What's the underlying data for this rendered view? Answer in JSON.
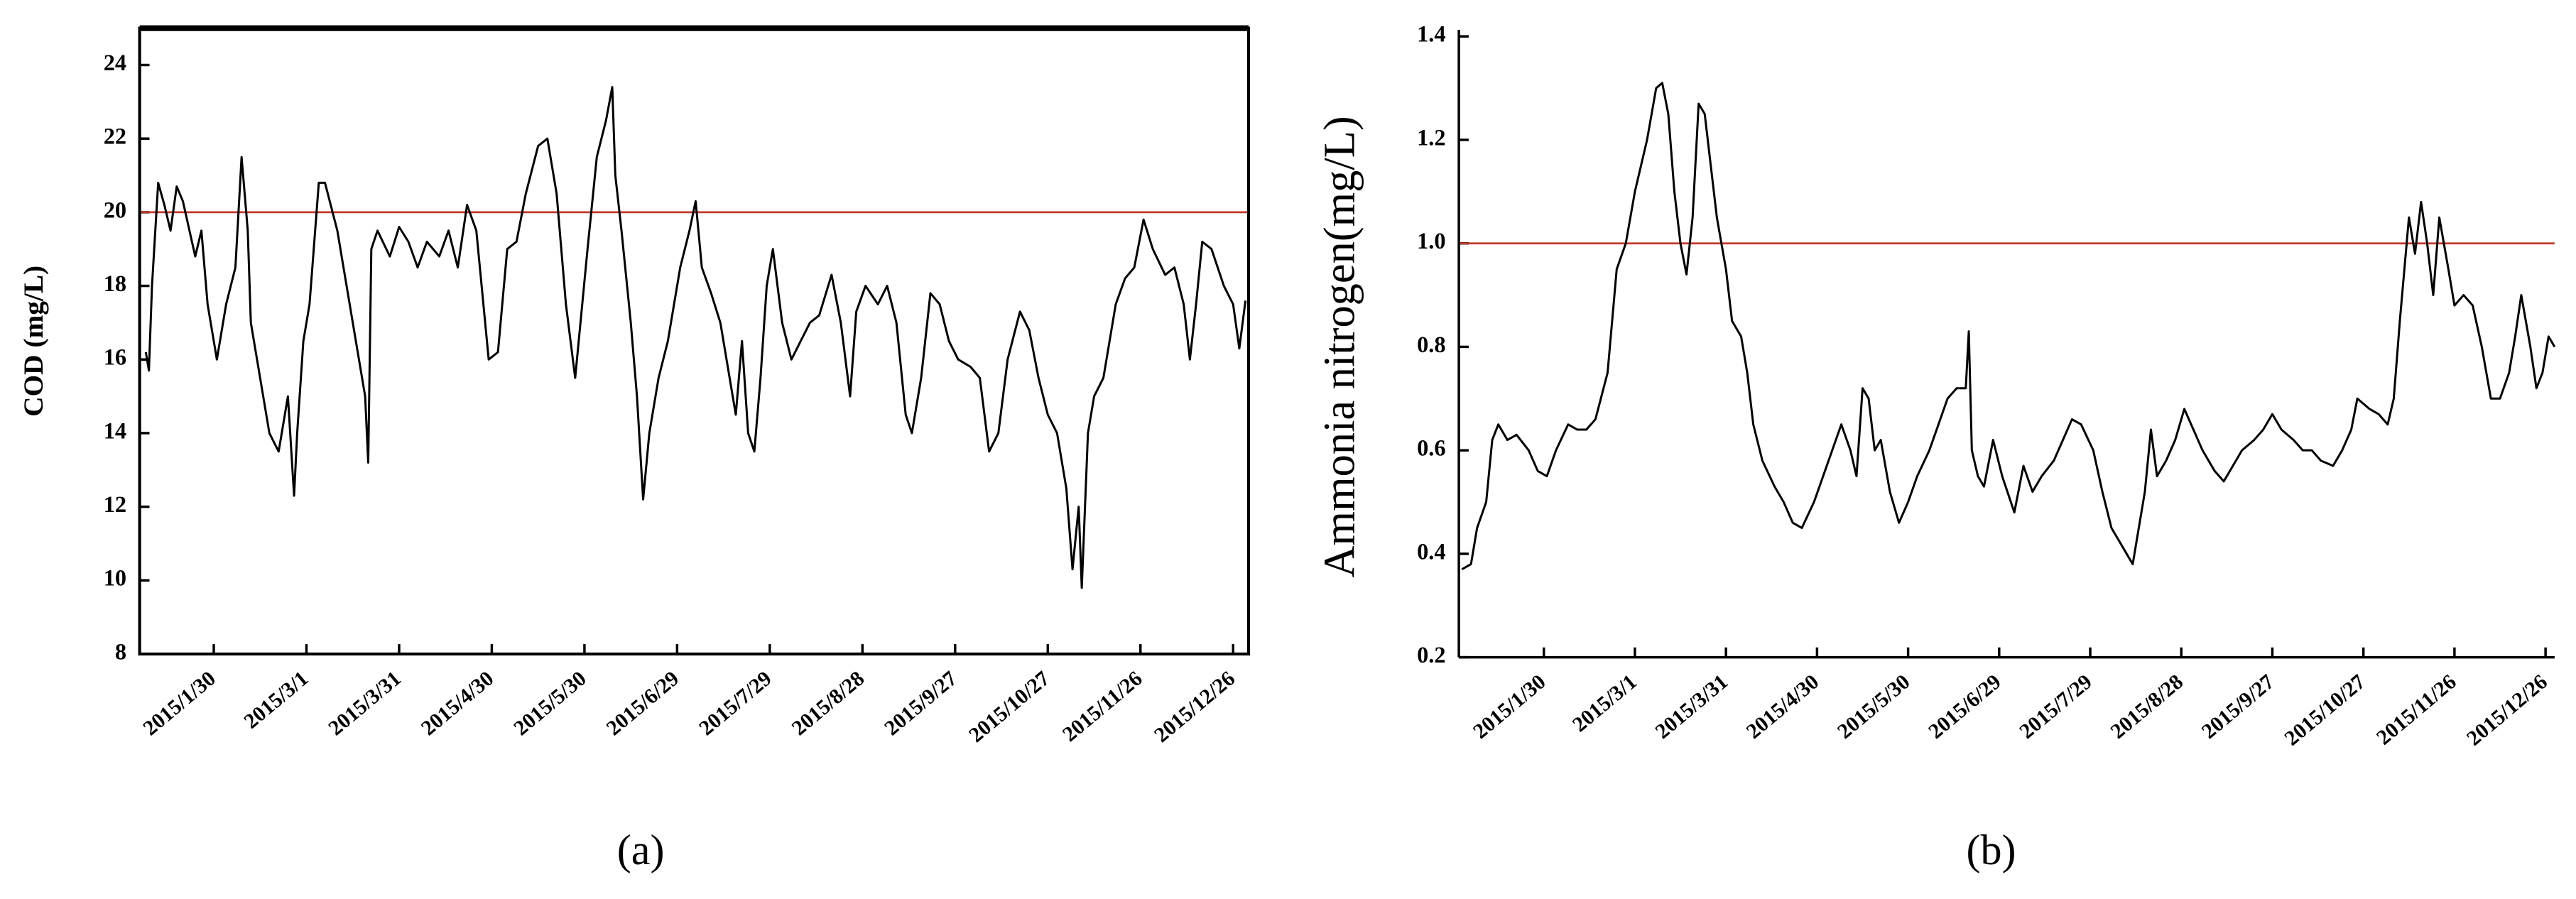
{
  "chart_data": [
    {
      "type": "line",
      "caption": "(a)",
      "ylabel": "COD (mg/L)",
      "color": "#000000",
      "xlim": [
        "2015/1/6",
        "2015/12/31"
      ],
      "xticks": [
        "2015/1/30",
        "2015/3/1",
        "2015/3/31",
        "2015/4/30",
        "2015/5/30",
        "2015/6/29",
        "2015/7/29",
        "2015/8/28",
        "2015/9/27",
        "2015/10/27",
        "2015/11/26",
        "2015/12/26"
      ],
      "ylim": [
        8,
        25
      ],
      "yticks": [
        8,
        10,
        12,
        14,
        16,
        18,
        20,
        22,
        24
      ],
      "reference_line": 20,
      "reference_color": "#c0392b",
      "x": [
        "2015/1/8",
        "2015/1/9",
        "2015/1/10",
        "2015/1/12",
        "2015/1/14",
        "2015/1/16",
        "2015/1/18",
        "2015/1/20",
        "2015/1/24",
        "2015/1/26",
        "2015/1/28",
        "2015/1/31",
        "2015/2/3",
        "2015/2/6",
        "2015/2/8",
        "2015/2/10",
        "2015/2/11",
        "2015/2/14",
        "2015/2/17",
        "2015/2/20",
        "2015/2/23",
        "2015/2/25",
        "2015/2/26",
        "2015/2/28",
        "2015/3/2",
        "2015/3/5",
        "2015/3/7",
        "2015/3/11",
        "2015/3/14",
        "2015/3/18",
        "2015/3/20",
        "2015/3/21",
        "2015/3/22",
        "2015/3/24",
        "2015/3/28",
        "2015/3/31",
        "2015/4/3",
        "2015/4/6",
        "2015/4/9",
        "2015/4/13",
        "2015/4/16",
        "2015/4/19",
        "2015/4/22",
        "2015/4/25",
        "2015/4/29",
        "2015/5/2",
        "2015/5/5",
        "2015/5/8",
        "2015/5/11",
        "2015/5/15",
        "2015/5/18",
        "2015/5/21",
        "2015/5/24",
        "2015/5/27",
        "2015/5/31",
        "2015/6/3",
        "2015/6/6",
        "2015/6/8",
        "2015/6/9",
        "2015/6/11",
        "2015/6/14",
        "2015/6/16",
        "2015/6/18",
        "2015/6/20",
        "2015/6/23",
        "2015/6/26",
        "2015/6/30",
        "2015/7/3",
        "2015/7/5",
        "2015/7/7",
        "2015/7/10",
        "2015/7/13",
        "2015/7/16",
        "2015/7/18",
        "2015/7/20",
        "2015/7/22",
        "2015/7/24",
        "2015/7/26",
        "2015/7/28",
        "2015/7/30",
        "2015/8/2",
        "2015/8/5",
        "2015/8/8",
        "2015/8/11",
        "2015/8/14",
        "2015/8/18",
        "2015/8/21",
        "2015/8/24",
        "2015/8/26",
        "2015/8/29",
        "2015/9/2",
        "2015/9/5",
        "2015/9/8",
        "2015/9/11",
        "2015/9/13",
        "2015/9/16",
        "2015/9/19",
        "2015/9/22",
        "2015/9/25",
        "2015/9/28",
        "2015/10/2",
        "2015/10/5",
        "2015/10/8",
        "2015/10/11",
        "2015/10/14",
        "2015/10/18",
        "2015/10/21",
        "2015/10/24",
        "2015/10/27",
        "2015/10/30",
        "2015/11/2",
        "2015/11/4",
        "2015/11/6",
        "2015/11/7",
        "2015/11/9",
        "2015/11/11",
        "2015/11/14",
        "2015/11/18",
        "2015/11/21",
        "2015/11/24",
        "2015/11/27",
        "2015/11/30",
        "2015/12/4",
        "2015/12/7",
        "2015/12/10",
        "2015/12/12",
        "2015/12/14",
        "2015/12/16",
        "2015/12/19",
        "2015/12/21",
        "2015/12/23",
        "2015/12/26",
        "2015/12/28",
        "2015/12/30"
      ],
      "values": [
        16.2,
        15.7,
        18,
        20.8,
        20.2,
        19.5,
        20.7,
        20.3,
        18.8,
        19.5,
        17.5,
        16,
        17.5,
        18.5,
        21.5,
        19.5,
        17,
        15.5,
        14,
        13.5,
        15,
        12.3,
        14,
        16.5,
        17.5,
        20.8,
        20.8,
        19.5,
        18,
        16,
        15,
        13.2,
        19,
        19.5,
        18.8,
        19.6,
        19.2,
        18.5,
        19.2,
        18.8,
        19.5,
        18.5,
        20.2,
        19.5,
        16,
        16.2,
        19,
        19.2,
        20.5,
        21.8,
        22,
        20.5,
        17.5,
        15.5,
        19,
        21.5,
        22.5,
        23.4,
        21,
        19.5,
        17,
        15,
        12.2,
        14,
        15.5,
        16.5,
        18.5,
        19.5,
        20.3,
        18.5,
        17.8,
        17,
        15.5,
        14.5,
        16.5,
        14,
        13.5,
        15.5,
        18,
        19,
        17,
        16,
        16.5,
        17,
        17.2,
        18.3,
        17,
        15,
        17.3,
        18,
        17.5,
        18,
        17,
        14.5,
        14,
        15.5,
        17.8,
        17.5,
        16.5,
        16,
        15.8,
        15.5,
        13.5,
        14,
        16,
        17.3,
        16.8,
        15.5,
        14.5,
        14,
        12.5,
        10.3,
        12,
        9.8,
        14,
        15,
        15.5,
        17.5,
        18.2,
        18.5,
        19.8,
        19,
        18.3,
        18.5,
        17.5,
        16,
        17.5,
        19.2,
        19,
        18.5,
        18,
        17.5,
        16.3,
        17.6
      ]
    },
    {
      "type": "line",
      "caption": "(b)",
      "ylabel": "Ammonia nitrogen(mg/L)",
      "color": "#000000",
      "xlim": [
        "2015/1/2",
        "2015/12/29"
      ],
      "xticks": [
        "2015/1/30",
        "2015/3/1",
        "2015/3/31",
        "2015/4/30",
        "2015/5/30",
        "2015/6/29",
        "2015/7/29",
        "2015/8/28",
        "2015/9/27",
        "2015/10/27",
        "2015/11/26",
        "2015/12/26"
      ],
      "ylim": [
        0.2,
        1.4
      ],
      "yticks": [
        0.2,
        0.4,
        0.6,
        0.8,
        {
          "value": 1,
          "label": "1.0"
        },
        1.2,
        1.4
      ],
      "reference_line": 1,
      "reference_color": "#c0392b",
      "x": [
        "2015/1/3",
        "2015/1/6",
        "2015/1/8",
        "2015/1/11",
        "2015/1/13",
        "2015/1/15",
        "2015/1/18",
        "2015/1/21",
        "2015/1/25",
        "2015/1/28",
        "2015/1/31",
        "2015/2/3",
        "2015/2/7",
        "2015/2/10",
        "2015/2/13",
        "2015/2/16",
        "2015/2/20",
        "2015/2/23",
        "2015/2/26",
        "2015/3/1",
        "2015/3/5",
        "2015/3/8",
        "2015/3/10",
        "2015/3/12",
        "2015/3/14",
        "2015/3/16",
        "2015/3/18",
        "2015/3/20",
        "2015/3/22",
        "2015/3/24",
        "2015/3/26",
        "2015/3/28",
        "2015/3/31",
        "2015/4/2",
        "2015/4/5",
        "2015/4/7",
        "2015/4/9",
        "2015/4/12",
        "2015/4/16",
        "2015/4/19",
        "2015/4/22",
        "2015/4/25",
        "2015/4/29",
        "2015/5/2",
        "2015/5/5",
        "2015/5/8",
        "2015/5/11",
        "2015/5/13",
        "2015/5/15",
        "2015/5/17",
        "2015/5/19",
        "2015/5/21",
        "2015/5/24",
        "2015/5/27",
        "2015/5/30",
        "2015/6/2",
        "2015/6/6",
        "2015/6/9",
        "2015/6/12",
        "2015/6/15",
        "2015/6/18",
        "2015/6/19",
        "2015/6/20",
        "2015/6/22",
        "2015/6/24",
        "2015/6/27",
        "2015/6/30",
        "2015/7/4",
        "2015/7/7",
        "2015/7/10",
        "2015/7/13",
        "2015/7/17",
        "2015/7/20",
        "2015/7/23",
        "2015/7/26",
        "2015/7/30",
        "2015/8/2",
        "2015/8/5",
        "2015/8/8",
        "2015/8/12",
        "2015/8/14",
        "2015/8/16",
        "2015/8/18",
        "2015/8/20",
        "2015/8/23",
        "2015/8/26",
        "2015/8/29",
        "2015/9/1",
        "2015/9/4",
        "2015/9/8",
        "2015/9/11",
        "2015/9/14",
        "2015/9/17",
        "2015/9/21",
        "2015/9/24",
        "2015/9/27",
        "2015/9/30",
        "2015/10/4",
        "2015/10/7",
        "2015/10/10",
        "2015/10/13",
        "2015/10/17",
        "2015/10/20",
        "2015/10/23",
        "2015/10/25",
        "2015/10/29",
        "2015/11/1",
        "2015/11/4",
        "2015/11/6",
        "2015/11/8",
        "2015/11/11",
        "2015/11/13",
        "2015/11/15",
        "2015/11/17",
        "2015/11/19",
        "2015/11/21",
        "2015/11/24",
        "2015/11/26",
        "2015/11/29",
        "2015/12/2",
        "2015/12/5",
        "2015/12/8",
        "2015/12/11",
        "2015/12/14",
        "2015/12/16",
        "2015/12/18",
        "2015/12/21",
        "2015/12/23",
        "2015/12/25",
        "2015/12/27",
        "2015/12/29"
      ],
      "values": [
        0.37,
        0.38,
        0.45,
        0.5,
        0.62,
        0.65,
        0.62,
        0.63,
        0.6,
        0.56,
        0.55,
        0.6,
        0.65,
        0.64,
        0.64,
        0.66,
        0.75,
        0.95,
        1.0,
        1.1,
        1.2,
        1.3,
        1.31,
        1.25,
        1.1,
        1.0,
        0.94,
        1.05,
        1.27,
        1.25,
        1.15,
        1.05,
        0.95,
        0.85,
        0.82,
        0.75,
        0.65,
        0.58,
        0.53,
        0.5,
        0.46,
        0.45,
        0.5,
        0.55,
        0.6,
        0.65,
        0.6,
        0.55,
        0.72,
        0.7,
        0.6,
        0.62,
        0.52,
        0.46,
        0.5,
        0.55,
        0.6,
        0.65,
        0.7,
        0.72,
        0.72,
        0.83,
        0.6,
        0.55,
        0.53,
        0.62,
        0.55,
        0.48,
        0.57,
        0.52,
        0.55,
        0.58,
        0.62,
        0.66,
        0.65,
        0.6,
        0.52,
        0.45,
        0.42,
        0.38,
        0.45,
        0.52,
        0.64,
        0.55,
        0.58,
        0.62,
        0.68,
        0.64,
        0.6,
        0.56,
        0.54,
        0.57,
        0.6,
        0.62,
        0.64,
        0.67,
        0.64,
        0.62,
        0.6,
        0.6,
        0.58,
        0.57,
        0.6,
        0.64,
        0.7,
        0.68,
        0.67,
        0.65,
        0.7,
        0.85,
        1.05,
        0.98,
        1.08,
        1.0,
        0.9,
        1.05,
        0.95,
        0.88,
        0.9,
        0.88,
        0.8,
        0.7,
        0.7,
        0.75,
        0.82,
        0.9,
        0.8,
        0.72,
        0.75,
        0.82,
        0.8
      ]
    }
  ]
}
